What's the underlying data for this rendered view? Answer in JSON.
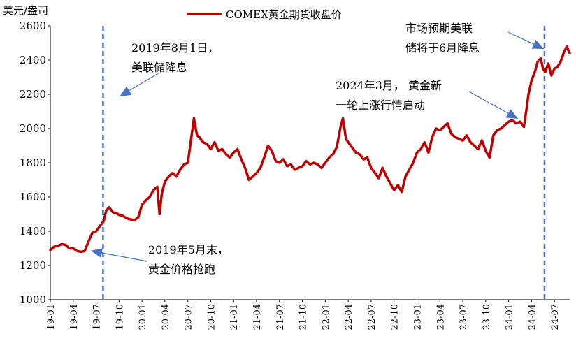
{
  "chart_data": {
    "type": "line",
    "title": "",
    "ylabel": "美元/盎司",
    "xlabel": "",
    "ylim": [
      1000,
      2600
    ],
    "yticks": [
      1000,
      1200,
      1400,
      1600,
      1800,
      2000,
      2200,
      2400,
      2600
    ],
    "x_range": [
      0,
      68
    ],
    "xticks": [
      {
        "label": "19-01",
        "x": 0
      },
      {
        "label": "19-04",
        "x": 3
      },
      {
        "label": "19-07",
        "x": 6
      },
      {
        "label": "19-10",
        "x": 9
      },
      {
        "label": "20-01",
        "x": 12
      },
      {
        "label": "20-04",
        "x": 15
      },
      {
        "label": "20-07",
        "x": 18
      },
      {
        "label": "20-10",
        "x": 21
      },
      {
        "label": "21-01",
        "x": 24
      },
      {
        "label": "21-04",
        "x": 27
      },
      {
        "label": "21-07",
        "x": 30
      },
      {
        "label": "21-10",
        "x": 33
      },
      {
        "label": "22-01",
        "x": 36
      },
      {
        "label": "22-04",
        "x": 39
      },
      {
        "label": "22-07",
        "x": 42
      },
      {
        "label": "22-10",
        "x": 45
      },
      {
        "label": "23-01",
        "x": 48
      },
      {
        "label": "23-04",
        "x": 51
      },
      {
        "label": "23-07",
        "x": 54
      },
      {
        "label": "23-10",
        "x": 57
      },
      {
        "label": "24-01",
        "x": 60
      },
      {
        "label": "24-04",
        "x": 63
      },
      {
        "label": "24-07",
        "x": 66
      }
    ],
    "series": [
      {
        "name": "COMEX黄金期货收盘价",
        "color": "#c00000",
        "points": [
          [
            0,
            1290
          ],
          [
            0.5,
            1310
          ],
          [
            1,
            1315
          ],
          [
            1.5,
            1325
          ],
          [
            2,
            1320
          ],
          [
            2.5,
            1300
          ],
          [
            3,
            1300
          ],
          [
            3.5,
            1285
          ],
          [
            4,
            1280
          ],
          [
            4.5,
            1285
          ],
          [
            5,
            1340
          ],
          [
            5.5,
            1390
          ],
          [
            6,
            1400
          ],
          [
            6.5,
            1430
          ],
          [
            7,
            1460
          ],
          [
            7.3,
            1520
          ],
          [
            7.7,
            1540
          ],
          [
            8.2,
            1510
          ],
          [
            8.7,
            1505
          ],
          [
            9,
            1495
          ],
          [
            9.5,
            1490
          ],
          [
            10,
            1475
          ],
          [
            10.5,
            1470
          ],
          [
            11,
            1465
          ],
          [
            11.5,
            1480
          ],
          [
            12,
            1555
          ],
          [
            12.5,
            1580
          ],
          [
            13,
            1600
          ],
          [
            13.5,
            1640
          ],
          [
            14,
            1660
          ],
          [
            14.3,
            1500
          ],
          [
            14.6,
            1620
          ],
          [
            15,
            1690
          ],
          [
            15.5,
            1720
          ],
          [
            16,
            1740
          ],
          [
            16.5,
            1720
          ],
          [
            17,
            1760
          ],
          [
            17.5,
            1790
          ],
          [
            18,
            1800
          ],
          [
            18.5,
            1960
          ],
          [
            18.8,
            2060
          ],
          [
            19.2,
            1960
          ],
          [
            19.5,
            1950
          ],
          [
            20,
            1920
          ],
          [
            20.5,
            1910
          ],
          [
            21,
            1880
          ],
          [
            21.5,
            1920
          ],
          [
            22,
            1870
          ],
          [
            22.5,
            1880
          ],
          [
            23,
            1850
          ],
          [
            23.5,
            1830
          ],
          [
            24,
            1860
          ],
          [
            24.5,
            1880
          ],
          [
            25,
            1820
          ],
          [
            25.5,
            1770
          ],
          [
            26,
            1700
          ],
          [
            26.5,
            1720
          ],
          [
            27,
            1740
          ],
          [
            27.5,
            1770
          ],
          [
            28,
            1830
          ],
          [
            28.5,
            1900
          ],
          [
            29,
            1870
          ],
          [
            29.5,
            1810
          ],
          [
            30,
            1800
          ],
          [
            30.5,
            1820
          ],
          [
            31,
            1780
          ],
          [
            31.5,
            1790
          ],
          [
            32,
            1760
          ],
          [
            32.5,
            1770
          ],
          [
            33,
            1780
          ],
          [
            33.5,
            1810
          ],
          [
            34,
            1790
          ],
          [
            34.5,
            1800
          ],
          [
            35,
            1790
          ],
          [
            35.5,
            1770
          ],
          [
            36,
            1800
          ],
          [
            36.5,
            1830
          ],
          [
            37,
            1850
          ],
          [
            37.5,
            1890
          ],
          [
            38,
            2010
          ],
          [
            38.3,
            2060
          ],
          [
            38.7,
            1940
          ],
          [
            39,
            1920
          ],
          [
            39.5,
            1890
          ],
          [
            40,
            1860
          ],
          [
            40.5,
            1850
          ],
          [
            41,
            1820
          ],
          [
            41.5,
            1830
          ],
          [
            42,
            1770
          ],
          [
            42.5,
            1740
          ],
          [
            43,
            1710
          ],
          [
            43.5,
            1770
          ],
          [
            44,
            1720
          ],
          [
            44.5,
            1680
          ],
          [
            45,
            1640
          ],
          [
            45.5,
            1670
          ],
          [
            46,
            1630
          ],
          [
            46.5,
            1720
          ],
          [
            47,
            1760
          ],
          [
            47.5,
            1800
          ],
          [
            48,
            1860
          ],
          [
            48.5,
            1880
          ],
          [
            49,
            1920
          ],
          [
            49.5,
            1860
          ],
          [
            50,
            1950
          ],
          [
            50.5,
            2000
          ],
          [
            51,
            1990
          ],
          [
            51.5,
            2010
          ],
          [
            52,
            2030
          ],
          [
            52.5,
            1970
          ],
          [
            53,
            1950
          ],
          [
            53.5,
            1940
          ],
          [
            54,
            1930
          ],
          [
            54.5,
            1960
          ],
          [
            55,
            1920
          ],
          [
            55.5,
            1900
          ],
          [
            56,
            1880
          ],
          [
            56.5,
            1930
          ],
          [
            57,
            1870
          ],
          [
            57.5,
            1830
          ],
          [
            58,
            1960
          ],
          [
            58.5,
            1990
          ],
          [
            59,
            2000
          ],
          [
            59.5,
            2020
          ],
          [
            60,
            2040
          ],
          [
            60.5,
            2050
          ],
          [
            61,
            2030
          ],
          [
            61.5,
            2040
          ],
          [
            62,
            2010
          ],
          [
            62.3,
            2100
          ],
          [
            62.6,
            2200
          ],
          [
            63,
            2280
          ],
          [
            63.5,
            2340
          ],
          [
            63.8,
            2390
          ],
          [
            64.2,
            2410
          ],
          [
            64.5,
            2350
          ],
          [
            64.8,
            2330
          ],
          [
            65.2,
            2380
          ],
          [
            65.6,
            2310
          ],
          [
            66,
            2350
          ],
          [
            66.4,
            2360
          ],
          [
            66.8,
            2390
          ],
          [
            67.2,
            2440
          ],
          [
            67.6,
            2480
          ],
          [
            68,
            2440
          ]
        ]
      }
    ],
    "reference_lines": [
      {
        "x": 6.9,
        "style": "dashed",
        "color": "#4472c4"
      },
      {
        "x": 64.7,
        "style": "dashed",
        "color": "#4472c4"
      }
    ],
    "annotations": [
      {
        "lines": [
          "2019年8月1日，",
          "美联储降息"
        ]
      },
      {
        "lines": [
          "2019年5月末，",
          "黄金价格抢跑"
        ]
      },
      {
        "lines": [
          "2024年3月， 黄金新",
          "一轮上涨行情启动"
        ]
      },
      {
        "lines": [
          "市场预期美联",
          "储将于6月降息"
        ]
      }
    ]
  }
}
